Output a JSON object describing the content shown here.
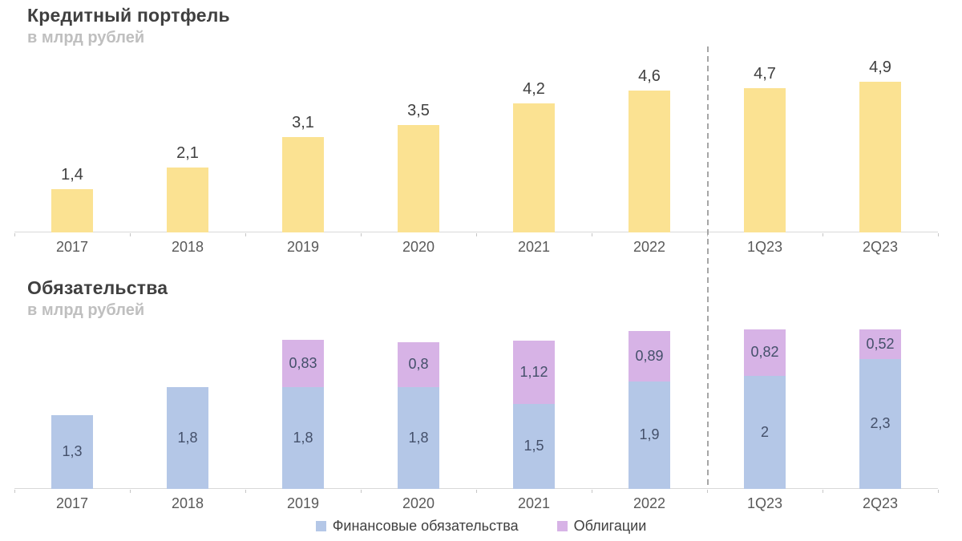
{
  "chart_data": [
    {
      "type": "bar",
      "title": "Кредитный портфель",
      "subtitle": "в млрд рублей",
      "categories": [
        "2017",
        "2018",
        "2019",
        "2020",
        "2021",
        "2022",
        "1Q23",
        "2Q23"
      ],
      "values": [
        1.4,
        2.1,
        3.1,
        3.5,
        4.2,
        4.6,
        4.7,
        4.9
      ],
      "value_labels": [
        "1,4",
        "2,1",
        "3,1",
        "3,5",
        "4,2",
        "4,6",
        "4,7",
        "4,9"
      ],
      "bar_color": "#FBE292",
      "ylim": [
        0,
        5.2
      ],
      "grid": false,
      "divider_after_category": "2022",
      "decimal_separator": ","
    },
    {
      "type": "stacked-bar",
      "title": "Обязательства",
      "subtitle": "в млрд рублей",
      "categories": [
        "2017",
        "2018",
        "2019",
        "2020",
        "2021",
        "2022",
        "1Q23",
        "2Q23"
      ],
      "series": [
        {
          "name": "Финансовые обязательства",
          "color": "#B4C7E7",
          "values": [
            1.3,
            1.8,
            1.8,
            1.8,
            1.5,
            1.9,
            2,
            2.3
          ],
          "value_labels": [
            "1,3",
            "1,8",
            "1,8",
            "1,8",
            "1,5",
            "1,9",
            "2",
            "2,3"
          ]
        },
        {
          "name": "Облигации",
          "color": "#D7B3E6",
          "values": [
            0,
            0,
            0.83,
            0.8,
            1.12,
            0.89,
            0.82,
            0.52
          ],
          "value_labels": [
            "",
            "",
            "0,83",
            "0,8",
            "1,12",
            "0,89",
            "0,82",
            "0,52"
          ]
        }
      ],
      "ylim": [
        0,
        2.95
      ],
      "grid": false,
      "legend_position": "bottom",
      "divider_after_category": "2022",
      "decimal_separator": ","
    }
  ],
  "colors": {
    "title": "#404040",
    "subtitle": "#BFBFBF",
    "category_label": "#595959",
    "axis": "#D9D9D9",
    "divider": "#A6A6A6"
  }
}
